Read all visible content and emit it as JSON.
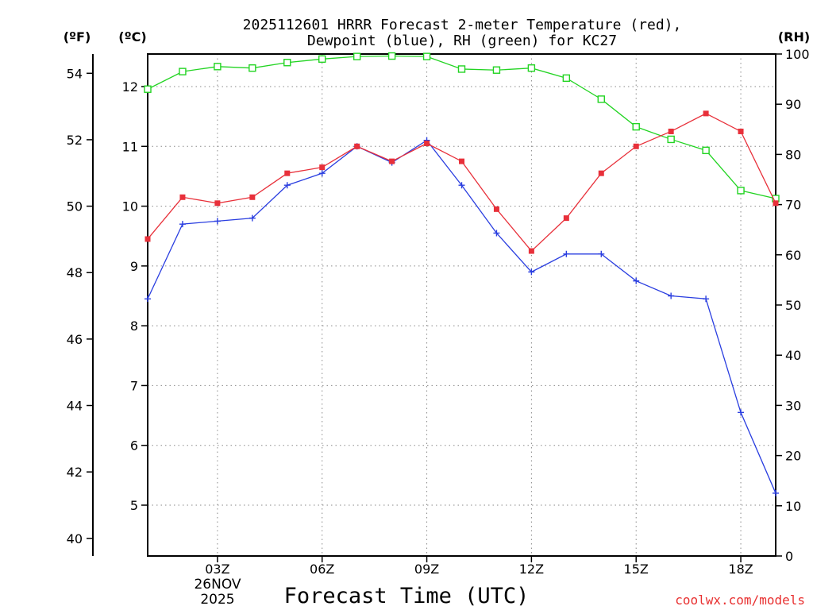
{
  "chart_data": {
    "type": "line",
    "title_line1": "2025112601 HRRR Forecast 2-meter Temperature (red),",
    "title_line2": "Dewpoint (blue), RH (green) for KC27",
    "xlabel": "Forecast Time (UTC)",
    "date_line1": "26NOV",
    "date_line2": "2025",
    "credit": "coolwx.com/models",
    "unit_f": "(ºF)",
    "unit_c": "(ºC)",
    "unit_rh": "(RH)",
    "x_hours": [
      1,
      2,
      3,
      4,
      5,
      6,
      7,
      8,
      9,
      10,
      11,
      12,
      13,
      14,
      15,
      16,
      17,
      18,
      19
    ],
    "xlim": [
      1,
      19
    ],
    "x_ticks": [
      {
        "hour": 3,
        "label": "03Z"
      },
      {
        "hour": 6,
        "label": "06Z"
      },
      {
        "hour": 9,
        "label": "09Z"
      },
      {
        "hour": 12,
        "label": "12Z"
      },
      {
        "hour": 15,
        "label": "15Z"
      },
      {
        "hour": 18,
        "label": "18Z"
      }
    ],
    "c_ticks": [
      5,
      6,
      7,
      8,
      9,
      10,
      11,
      12
    ],
    "f_ticks": [
      40,
      42,
      44,
      46,
      48,
      50,
      52,
      54
    ],
    "rh_ticks": [
      0,
      10,
      20,
      30,
      40,
      50,
      60,
      70,
      80,
      90,
      100
    ],
    "series": [
      {
        "name": "Temperature (°C)",
        "color": "#e8303a",
        "marker": "filled-square",
        "values": [
          9.45,
          10.15,
          10.05,
          10.15,
          10.55,
          10.65,
          11.0,
          10.75,
          11.05,
          10.75,
          9.95,
          9.25,
          9.8,
          10.55,
          11.0,
          11.25,
          11.55,
          11.25,
          10.05
        ]
      },
      {
        "name": "Dewpoint (°C)",
        "color": "#2a3ee0",
        "marker": "plus",
        "values": [
          8.45,
          9.7,
          9.75,
          9.8,
          10.35,
          10.55,
          11.0,
          10.73,
          11.1,
          10.35,
          9.55,
          8.9,
          9.2,
          9.2,
          8.75,
          8.5,
          8.45,
          6.55,
          5.2
        ]
      },
      {
        "name": "RH (%)",
        "color": "#22d422",
        "marker": "open-square",
        "values": [
          93,
          96.5,
          97.5,
          97.2,
          98.3,
          99,
          99.5,
          99.6,
          99.5,
          97,
          96.8,
          97.2,
          95.2,
          91,
          85.5,
          83,
          80.8,
          72.8,
          71.2
        ]
      }
    ]
  }
}
